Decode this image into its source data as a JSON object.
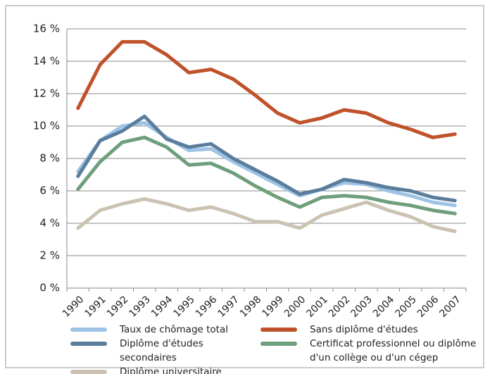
{
  "chart_data": {
    "type": "line",
    "categories": [
      "1990",
      "1991",
      "1992",
      "1993",
      "1994",
      "1995",
      "1996",
      "1997",
      "1998",
      "1999",
      "2000",
      "2001",
      "2002",
      "2003",
      "2004",
      "2005",
      "2006",
      "2007"
    ],
    "series": [
      {
        "name": "Taux de chômage total",
        "color": "#9dc3e6",
        "values": [
          7.2,
          9.1,
          10.0,
          10.2,
          9.3,
          8.5,
          8.6,
          7.8,
          7.1,
          6.4,
          5.7,
          6.1,
          6.5,
          6.4,
          6.0,
          5.7,
          5.3,
          5.1
        ]
      },
      {
        "name": "Sans diplôme d'études",
        "color": "#c0522b",
        "values": [
          11.1,
          13.8,
          15.2,
          15.2,
          14.4,
          13.3,
          13.5,
          12.9,
          11.9,
          10.8,
          10.2,
          10.5,
          11.0,
          10.8,
          10.2,
          9.8,
          9.3,
          9.5
        ]
      },
      {
        "name": "Diplôme d'études secondaires",
        "color": "#5b7d9c",
        "values": [
          6.9,
          9.1,
          9.7,
          10.6,
          9.2,
          8.7,
          8.9,
          8.0,
          7.3,
          6.6,
          5.8,
          6.1,
          6.7,
          6.5,
          6.2,
          6.0,
          5.6,
          5.4
        ]
      },
      {
        "name": "Certificat professionnel ou diplôme d'un collège ou d'un cégep",
        "color": "#6e9f7c",
        "values": [
          6.1,
          7.8,
          9.0,
          9.3,
          8.7,
          7.6,
          7.7,
          7.1,
          6.3,
          5.6,
          5.0,
          5.6,
          5.7,
          5.6,
          5.3,
          5.1,
          4.8,
          4.6
        ]
      },
      {
        "name": "Diplôme universitaire",
        "color": "#cbc2b3",
        "values": [
          3.7,
          4.8,
          5.2,
          5.5,
          5.2,
          4.8,
          5.0,
          4.6,
          4.1,
          4.1,
          3.7,
          4.5,
          4.9,
          5.3,
          4.8,
          4.4,
          3.8,
          3.5
        ]
      }
    ],
    "ylim": [
      0,
      16
    ],
    "yticks": [
      {
        "value": 0,
        "label": "0 %"
      },
      {
        "value": 2,
        "label": "2 %"
      },
      {
        "value": 4,
        "label": "4 %"
      },
      {
        "value": 6,
        "label": "6 %"
      },
      {
        "value": 8,
        "label": "8 %"
      },
      {
        "value": 10,
        "label": "10 %"
      },
      {
        "value": 12,
        "label": "12 %"
      },
      {
        "value": 14,
        "label": "14 %"
      },
      {
        "value": 16,
        "label": "16 %"
      }
    ],
    "grid": true
  }
}
